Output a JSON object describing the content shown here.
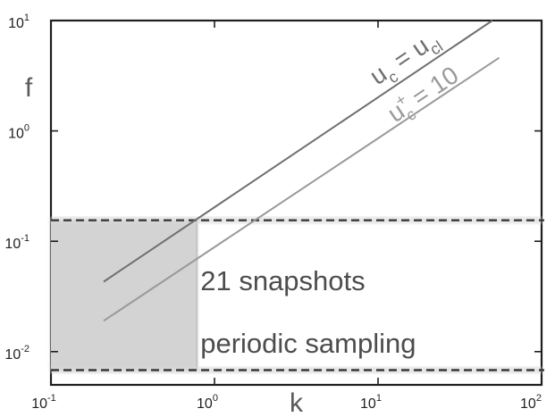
{
  "chart_data": {
    "type": "line",
    "xlabel": "k",
    "ylabel": "f",
    "x_scale": "log",
    "y_scale": "log",
    "xlim": [
      0.1,
      100
    ],
    "ylim": [
      0.005,
      10
    ],
    "x_ticks": [
      {
        "value": 0.1,
        "base": "10",
        "exp": "-1"
      },
      {
        "value": 1,
        "base": "10",
        "exp": "0"
      },
      {
        "value": 10,
        "base": "10",
        "exp": "1"
      },
      {
        "value": 100,
        "base": "10",
        "exp": "2"
      }
    ],
    "y_ticks": [
      {
        "value": 0.01,
        "base": "10",
        "exp": "-2"
      },
      {
        "value": 0.1,
        "base": "10",
        "exp": "-1"
      },
      {
        "value": 1,
        "base": "10",
        "exp": "0"
      },
      {
        "value": 10,
        "base": "10",
        "exp": "1"
      }
    ],
    "grid": false,
    "series": [
      {
        "name": "u_c = u_cl",
        "label_parts": {
          "base": "u",
          "sub": "c",
          "middle": " = u",
          "sub2": "cl"
        },
        "color": "#6f6f6f",
        "x": [
          0.21,
          50
        ],
        "y": [
          0.043,
          10
        ]
      },
      {
        "name": "u_c^+ = 10",
        "label_parts": {
          "base": "u",
          "sub": "c",
          "sup": "+",
          "rest": " = 10"
        },
        "color": "#9a9a9a",
        "x": [
          0.21,
          55
        ],
        "y": [
          0.019,
          4.6
        ]
      }
    ],
    "shaded_region": {
      "x": [
        0.1,
        0.78
      ],
      "y": [
        0.0068,
        0.155
      ],
      "color": "#d3d3d3"
    },
    "hlines": [
      {
        "y": 0.155,
        "style": "dashed",
        "color": "#3a3a3a"
      },
      {
        "y": 0.0068,
        "style": "dashed",
        "color": "#3a3a3a"
      }
    ],
    "vline": {
      "x": 0.78,
      "y": [
        0.0068,
        0.155
      ],
      "color": "#c4c4c4"
    },
    "annotation": {
      "lines": [
        "21 snapshots",
        "periodic sampling"
      ],
      "x": 0.82,
      "y": [
        0.036,
        0.0098
      ]
    }
  }
}
